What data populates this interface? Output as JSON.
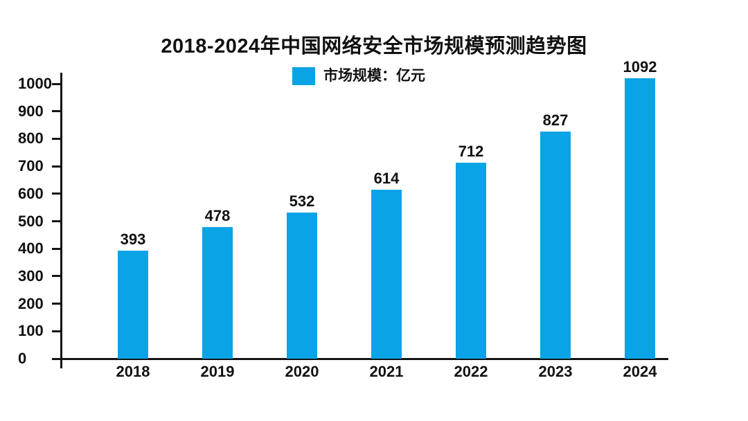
{
  "page": {
    "background_color": "#ffffff",
    "text_color": "#111111",
    "axis_color": "#141414"
  },
  "chart_data": {
    "type": "bar",
    "title": "2018-2024年中国网络安全市场规模预测趋势图",
    "legend": {
      "label": "市场规模：亿元",
      "swatch_color": "#0AA3E6",
      "position": "top-center"
    },
    "categories": [
      "2018",
      "2019",
      "2020",
      "2021",
      "2022",
      "2023",
      "2024"
    ],
    "values": [
      393,
      478,
      532,
      614,
      712,
      827,
      1092
    ],
    "value_labels": [
      "393",
      "478",
      "532",
      "614",
      "712",
      "827",
      "1092"
    ],
    "bar_color": "#0AA3E6",
    "xlabel": "",
    "ylabel": "",
    "ylim": [
      0,
      1000
    ],
    "yticks": [
      0,
      100,
      200,
      300,
      400,
      500,
      600,
      700,
      800,
      900,
      1000
    ],
    "grid": false
  }
}
